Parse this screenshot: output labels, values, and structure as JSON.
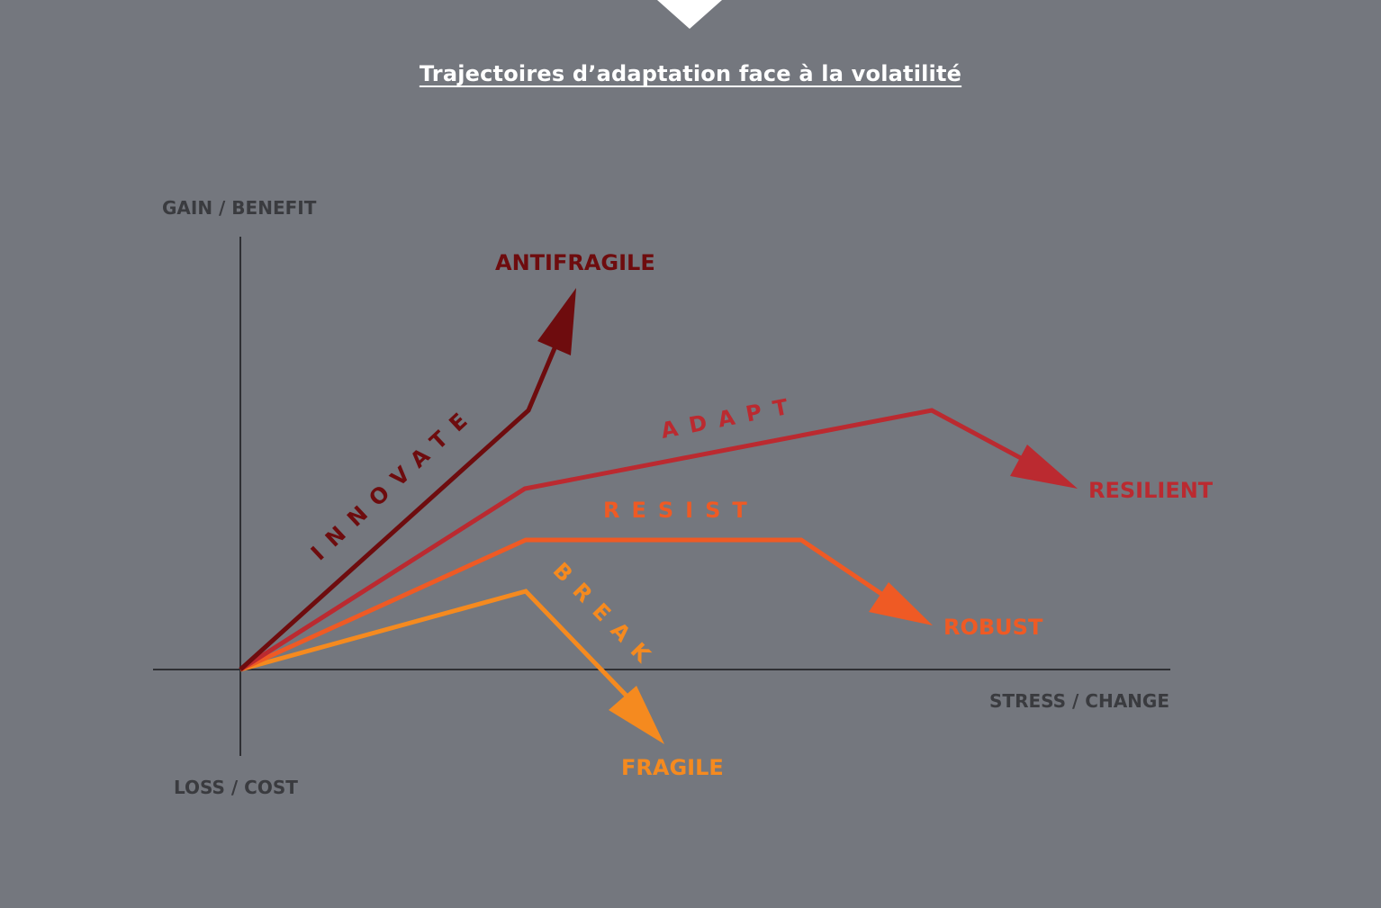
{
  "title": "Trajectoires d’adaptation face à la volatilité",
  "axes": {
    "y_top": "GAIN / BENEFIT",
    "y_bottom": "LOSS / COST",
    "x_right": "STRESS / CHANGE"
  },
  "colors": {
    "background": "#74777e",
    "axis": "#2e2f33",
    "antifragile": "#6e0c0e",
    "resilient": "#bb2a30",
    "robust": "#ef5a24",
    "fragile": "#f58a1f"
  },
  "trajectories": [
    {
      "id": "antifragile",
      "action": "INNOVATE",
      "outcome": "ANTIFRAGILE"
    },
    {
      "id": "resilient",
      "action": "ADAPT",
      "outcome": "RESILIENT"
    },
    {
      "id": "robust",
      "action": "RESIST",
      "outcome": "ROBUST"
    },
    {
      "id": "fragile",
      "action": "BREAK",
      "outcome": "FRAGILE"
    }
  ]
}
